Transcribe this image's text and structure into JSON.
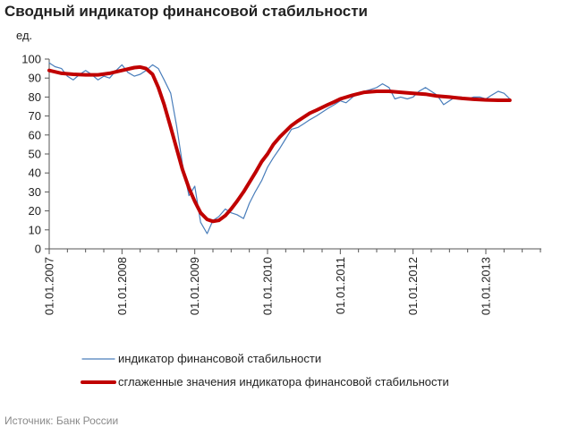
{
  "header": {
    "title": "Сводный индикатор финансовой стабильности"
  },
  "footer": {
    "source": "Источник: Банк России"
  },
  "chart_data": {
    "type": "line",
    "ylabel": "ед.",
    "ylim": [
      0,
      100
    ],
    "ytick_step": 10,
    "yticks": [
      "0",
      "10",
      "20",
      "30",
      "40",
      "50",
      "60",
      "70",
      "80",
      "90",
      "100"
    ],
    "xlim": [
      2007.0,
      2013.8
    ],
    "xticks": [
      {
        "value": 2007,
        "label": "01.01.2007"
      },
      {
        "value": 2008,
        "label": "01.01.2008"
      },
      {
        "value": 2009,
        "label": "01.01.2009"
      },
      {
        "value": 2010,
        "label": "01.01.2010"
      },
      {
        "value": 2011,
        "label": "01.01.2011"
      },
      {
        "value": 2012,
        "label": "01.01.2012"
      },
      {
        "value": 2013,
        "label": "01.01.2013"
      }
    ],
    "grid": false,
    "legend_position": "bottom",
    "series": [
      {
        "name": "индикатор финансовой стабильности",
        "color": "#4a7ebb",
        "style": "thin",
        "points": [
          [
            2007.0,
            98
          ],
          [
            2007.08,
            96
          ],
          [
            2007.17,
            95
          ],
          [
            2007.25,
            91
          ],
          [
            2007.33,
            89
          ],
          [
            2007.42,
            92
          ],
          [
            2007.5,
            94
          ],
          [
            2007.58,
            92
          ],
          [
            2007.67,
            89
          ],
          [
            2007.75,
            91
          ],
          [
            2007.83,
            90
          ],
          [
            2007.92,
            94
          ],
          [
            2008.0,
            97
          ],
          [
            2008.08,
            93
          ],
          [
            2008.17,
            91
          ],
          [
            2008.25,
            92
          ],
          [
            2008.33,
            94
          ],
          [
            2008.42,
            97
          ],
          [
            2008.5,
            95
          ],
          [
            2008.58,
            89
          ],
          [
            2008.67,
            82
          ],
          [
            2008.75,
            65
          ],
          [
            2008.83,
            45
          ],
          [
            2008.92,
            28
          ],
          [
            2009.0,
            33
          ],
          [
            2009.08,
            14
          ],
          [
            2009.17,
            8
          ],
          [
            2009.25,
            15
          ],
          [
            2009.33,
            17
          ],
          [
            2009.42,
            21
          ],
          [
            2009.5,
            19
          ],
          [
            2009.58,
            18
          ],
          [
            2009.67,
            16
          ],
          [
            2009.75,
            24
          ],
          [
            2009.83,
            30
          ],
          [
            2009.92,
            36
          ],
          [
            2010.0,
            43
          ],
          [
            2010.08,
            48
          ],
          [
            2010.17,
            53
          ],
          [
            2010.25,
            58
          ],
          [
            2010.33,
            63
          ],
          [
            2010.42,
            64
          ],
          [
            2010.5,
            66
          ],
          [
            2010.58,
            68
          ],
          [
            2010.67,
            70
          ],
          [
            2010.75,
            72
          ],
          [
            2010.83,
            74
          ],
          [
            2010.92,
            76
          ],
          [
            2011.0,
            78
          ],
          [
            2011.08,
            77
          ],
          [
            2011.17,
            80
          ],
          [
            2011.25,
            82
          ],
          [
            2011.33,
            83
          ],
          [
            2011.42,
            84
          ],
          [
            2011.5,
            85
          ],
          [
            2011.58,
            87
          ],
          [
            2011.67,
            85
          ],
          [
            2011.75,
            79
          ],
          [
            2011.83,
            80
          ],
          [
            2011.92,
            79
          ],
          [
            2012.0,
            80
          ],
          [
            2012.08,
            83
          ],
          [
            2012.17,
            85
          ],
          [
            2012.25,
            83
          ],
          [
            2012.33,
            81
          ],
          [
            2012.42,
            76
          ],
          [
            2012.5,
            78
          ],
          [
            2012.58,
            80
          ],
          [
            2012.67,
            80
          ],
          [
            2012.75,
            79
          ],
          [
            2012.83,
            80
          ],
          [
            2012.92,
            80
          ],
          [
            2013.0,
            79
          ],
          [
            2013.08,
            81
          ],
          [
            2013.17,
            83
          ],
          [
            2013.25,
            82
          ],
          [
            2013.33,
            79
          ]
        ]
      },
      {
        "name": "сглаженные значения индикатора финансовой стабильности",
        "color": "#c00000",
        "style": "thick",
        "points": [
          [
            2007.0,
            94
          ],
          [
            2007.17,
            92.5
          ],
          [
            2007.33,
            92
          ],
          [
            2007.5,
            91.7
          ],
          [
            2007.67,
            91.7
          ],
          [
            2007.83,
            92.5
          ],
          [
            2008.0,
            94
          ],
          [
            2008.17,
            95.5
          ],
          [
            2008.25,
            95.8
          ],
          [
            2008.33,
            95
          ],
          [
            2008.42,
            92
          ],
          [
            2008.5,
            85
          ],
          [
            2008.58,
            76
          ],
          [
            2008.67,
            64
          ],
          [
            2008.75,
            53
          ],
          [
            2008.83,
            42
          ],
          [
            2008.92,
            32
          ],
          [
            2009.0,
            25
          ],
          [
            2009.08,
            19
          ],
          [
            2009.17,
            15.5
          ],
          [
            2009.25,
            14.5
          ],
          [
            2009.33,
            15
          ],
          [
            2009.42,
            17.5
          ],
          [
            2009.5,
            21
          ],
          [
            2009.58,
            25
          ],
          [
            2009.67,
            30
          ],
          [
            2009.75,
            35
          ],
          [
            2009.83,
            40
          ],
          [
            2009.92,
            46
          ],
          [
            2010.0,
            50
          ],
          [
            2010.08,
            55
          ],
          [
            2010.17,
            59
          ],
          [
            2010.25,
            62
          ],
          [
            2010.33,
            65
          ],
          [
            2010.42,
            67.5
          ],
          [
            2010.5,
            69.5
          ],
          [
            2010.58,
            71.5
          ],
          [
            2010.67,
            73
          ],
          [
            2010.75,
            74.5
          ],
          [
            2010.83,
            76
          ],
          [
            2010.92,
            77.5
          ],
          [
            2011.0,
            79
          ],
          [
            2011.17,
            81
          ],
          [
            2011.33,
            82.5
          ],
          [
            2011.5,
            83
          ],
          [
            2011.67,
            83
          ],
          [
            2011.83,
            82.5
          ],
          [
            2012.0,
            82
          ],
          [
            2012.17,
            81.5
          ],
          [
            2012.33,
            80.5
          ],
          [
            2012.5,
            80
          ],
          [
            2012.67,
            79.3
          ],
          [
            2012.83,
            78.8
          ],
          [
            2013.0,
            78.5
          ],
          [
            2013.17,
            78.3
          ],
          [
            2013.33,
            78.3
          ]
        ]
      }
    ]
  }
}
